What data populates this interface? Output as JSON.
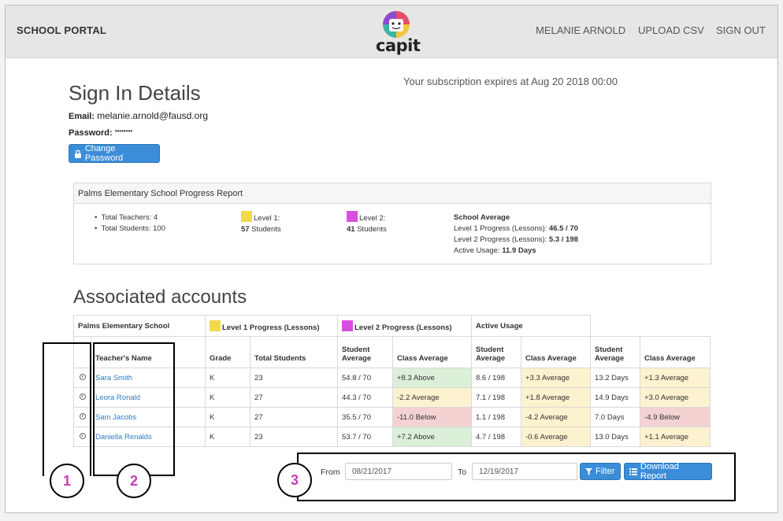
{
  "nav": {
    "brand": "SCHOOL PORTAL",
    "logo_text": "capit",
    "user": "MELANIE ARNOLD",
    "upload": "UPLOAD CSV",
    "signout": "SIGN OUT"
  },
  "signin": {
    "title": "Sign In Details",
    "email_label": "Email:",
    "email_value": "melanie.arnold@fausd.org",
    "password_label": "Password:",
    "password_value": "••••••••",
    "change_password": "Change Password"
  },
  "subscription": "Your subscription expires at Aug 20 2018 00:00",
  "report": {
    "title": "Palms Elementary School Progress Report",
    "total_teachers": "Total Teachers: 4",
    "total_students": "Total Students: 100",
    "level1_label": "Level 1:",
    "level1_count": "57",
    "level1_suffix": "Students",
    "level2_label": "Level 2:",
    "level2_count": "41",
    "level2_suffix": "Students",
    "avg_title": "School Average",
    "l1_progress_label": "Level 1 Progress (Lessons):",
    "l1_progress_value": "46.5 / 70",
    "l2_progress_label": "Level 2 Progress (Lessons):",
    "l2_progress_value": "5.3 / 198",
    "usage_label": "Active Usage:",
    "usage_value": "11.9 Days",
    "level1_color": "#f2d94a",
    "level2_color": "#d84fe0"
  },
  "accounts": {
    "title": "Associated accounts",
    "school": "Palms Elementary School",
    "group_l1": "Level 1 Progress (Lessons)",
    "group_l2": "Level 2 Progress (Lessons)",
    "group_usage": "Active Usage",
    "col_teacher": "Teacher's Name",
    "col_grade": "Grade",
    "col_total": "Total Students",
    "col_student_avg": "Student Average",
    "col_class_avg": "Class Average",
    "rows": [
      {
        "name": "Sara Smith",
        "grade": "K",
        "total": "23",
        "l1_student": "54.8 / 70",
        "l1_class": "+8.3 Above",
        "l2_student": "8.6 / 198",
        "l2_class": "+3.3 Average",
        "u_student": "13.2 Days",
        "u_class": "+1.3 Average"
      },
      {
        "name": "Leora Ronald",
        "grade": "K",
        "total": "27",
        "l1_student": "44.3 / 70",
        "l1_class": "-2.2 Average",
        "l2_student": "7.1 / 198",
        "l2_class": "+1.8 Average",
        "u_student": "14.9 Days",
        "u_class": "+3.0 Average"
      },
      {
        "name": "Sam Jacobs",
        "grade": "K",
        "total": "27",
        "l1_student": "35.5 / 70",
        "l1_class": "-11.0 Below",
        "l2_student": "1.1 / 198",
        "l2_class": "-4.2 Average",
        "u_student": "7.0 Days",
        "u_class": "-4.9 Below"
      },
      {
        "name": "Daniella Renalds",
        "grade": "K",
        "total": "23",
        "l1_student": "53.7 / 70",
        "l1_class": "+7.2 Above",
        "l2_student": "4.7 / 198",
        "l2_class": "-0.6 Average",
        "u_student": "13.0 Days",
        "u_class": "+1.1 Average"
      }
    ]
  },
  "filter": {
    "from_label": "From",
    "from_value": "08/21/2017",
    "to_label": "To",
    "to_value": "12/19/2017",
    "filter_btn": "Filter",
    "download_btn": "Download Report"
  },
  "annotations": [
    "1",
    "2",
    "3"
  ]
}
